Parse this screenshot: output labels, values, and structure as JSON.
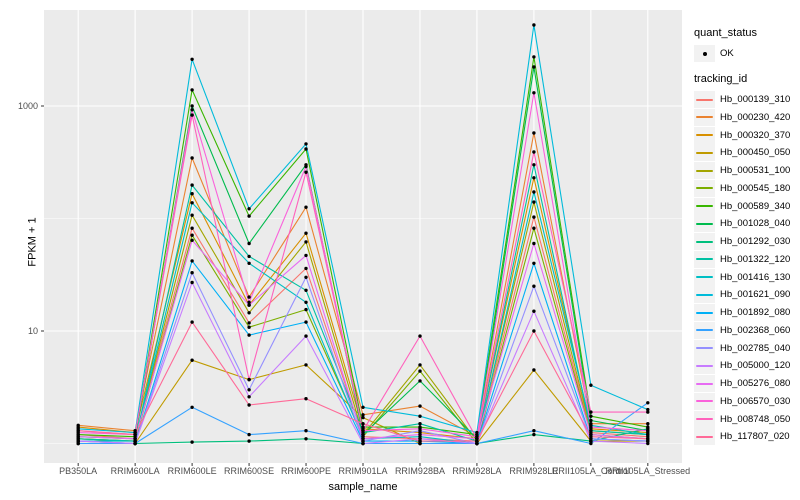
{
  "chart_data": {
    "type": "line",
    "title": "",
    "xlabel": "sample_name",
    "ylabel": "FPKM + 1",
    "y_scale": "log10",
    "y_tick_labels": [
      "10",
      "1000"
    ],
    "y_tick_values": [
      10,
      1000
    ],
    "y_minor_values": [
      1,
      100
    ],
    "ylim_log_px_note": "log10 scale, 1 decade per 112.5px",
    "panel_bg": "#EBEBEB",
    "grid_color": "#FFFFFF",
    "point_color": "#000000",
    "tick_text_color": "#4D4D4D",
    "categories": [
      "PB350LA",
      "RRIM600LA",
      "RRIM600LE",
      "RRIM600SE",
      "RRIM600PE",
      "RRIM901LA",
      "RRIM928BA",
      "RRIM928LA",
      "RRIM928LE",
      "RRII105LA_Control",
      "RRII105LA_Stressed"
    ],
    "series": [
      {
        "name": "Hb_000139_310",
        "color": "#F8766D",
        "values": [
          1.2,
          1.1,
          82,
          11.8,
          36,
          1.15,
          1.1,
          1.05,
          103,
          1.25,
          1.15
        ]
      },
      {
        "name": "Hb_000230_420",
        "color": "#EA8331",
        "values": [
          1.45,
          1.3,
          345,
          20,
          126,
          1.8,
          2.15,
          1.15,
          576,
          1.5,
          1.5
        ]
      },
      {
        "name": "Hb_000320_370",
        "color": "#D89000",
        "values": [
          1.4,
          1.25,
          166,
          17,
          74,
          1.35,
          1.25,
          1.1,
          230,
          1.35,
          1.25
        ]
      },
      {
        "name": "Hb_000450_050",
        "color": "#C09B00",
        "values": [
          1.0,
          1.0,
          5.5,
          3.7,
          5,
          1.7,
          1.0,
          1.0,
          4.5,
          1.05,
          1.05
        ]
      },
      {
        "name": "Hb_000531_100",
        "color": "#A3A500",
        "values": [
          1.1,
          1.05,
          107,
          14.5,
          62,
          1.2,
          5.0,
          1.05,
          140,
          1.3,
          1.2
        ]
      },
      {
        "name": "Hb_000545_180",
        "color": "#7CAE00",
        "values": [
          1.1,
          1.05,
          71,
          10.8,
          15.5,
          1.15,
          4.4,
          1.0,
          82,
          1.2,
          1.1
        ]
      },
      {
        "name": "Hb_000589_340",
        "color": "#39B600",
        "values": [
          1.2,
          1.15,
          1390,
          105,
          415,
          1.4,
          1.4,
          1.2,
          2730,
          1.75,
          1.4
        ]
      },
      {
        "name": "Hb_001028_040",
        "color": "#00BB4E",
        "values": [
          1.15,
          1.1,
          1000,
          60,
          300,
          1.2,
          3.6,
          1.1,
          2220,
          1.6,
          1.3
        ]
      },
      {
        "name": "Hb_001292_030",
        "color": "#00BF7D",
        "values": [
          1.0,
          1.0,
          1.03,
          1.05,
          1.1,
          1.0,
          1.0,
          1.0,
          1.2,
          1.05,
          1.35
        ]
      },
      {
        "name": "Hb_001322_120",
        "color": "#00C1A3",
        "values": [
          1.1,
          1.05,
          198,
          46,
          23,
          1.25,
          1.5,
          1.05,
          300,
          1.3,
          1.2
        ]
      },
      {
        "name": "Hb_001416_130",
        "color": "#00BFC4",
        "values": [
          1.05,
          1.05,
          138,
          40,
          18,
          1.1,
          1.15,
          1.0,
          172,
          1.45,
          1.2
        ]
      },
      {
        "name": "Hb_001621_090",
        "color": "#00BBDA",
        "values": [
          1.35,
          1.25,
          2600,
          122,
          460,
          2.1,
          1.75,
          1.25,
          5250,
          3.3,
          2.0
        ]
      },
      {
        "name": "Hb_001892_080",
        "color": "#00B0F6",
        "values": [
          1.05,
          1.0,
          42,
          9.2,
          12,
          1.05,
          1.05,
          1.0,
          40,
          1.1,
          1.05
        ]
      },
      {
        "name": "Hb_002368_060",
        "color": "#35A2FF",
        "values": [
          1.0,
          1.0,
          2.1,
          1.2,
          1.3,
          1.0,
          1.0,
          1.0,
          1.3,
          1.0,
          2.3
        ]
      },
      {
        "name": "Hb_002785_040",
        "color": "#9590FF",
        "values": [
          1.05,
          1.0,
          33,
          3.0,
          30,
          1.05,
          1.3,
          1.0,
          25,
          1.1,
          1.05
        ]
      },
      {
        "name": "Hb_005000_120",
        "color": "#C77CFF",
        "values": [
          1.05,
          1.0,
          27,
          2.6,
          9,
          1.0,
          1.1,
          1.0,
          15,
          1.05,
          1.0
        ]
      },
      {
        "name": "Hb_005276_080",
        "color": "#E76BF3",
        "values": [
          1.15,
          1.1,
          64,
          17,
          47,
          1.1,
          1.2,
          1.1,
          60,
          1.2,
          1.1
        ]
      },
      {
        "name": "Hb_006570_030",
        "color": "#FA62DB",
        "values": [
          1.25,
          1.2,
          925,
          18,
          290,
          1.3,
          1.35,
          1.15,
          1310,
          1.4,
          1.3
        ]
      },
      {
        "name": "Hb_008748_050",
        "color": "#FF62BC",
        "values": [
          1.3,
          1.2,
          830,
          3.7,
          258,
          1.3,
          9.0,
          1.1,
          390,
          1.9,
          1.9
        ]
      },
      {
        "name": "Hb_117807_020",
        "color": "#FF6A98",
        "values": [
          1.3,
          1.2,
          12,
          2.2,
          2.5,
          1.5,
          1.05,
          1.05,
          10,
          1.15,
          1.1
        ]
      }
    ]
  },
  "legend": {
    "quant_status": {
      "title": "quant_status",
      "items": [
        {
          "label": "OK",
          "marker": "point"
        }
      ]
    },
    "tracking": {
      "title": "tracking_id"
    }
  }
}
